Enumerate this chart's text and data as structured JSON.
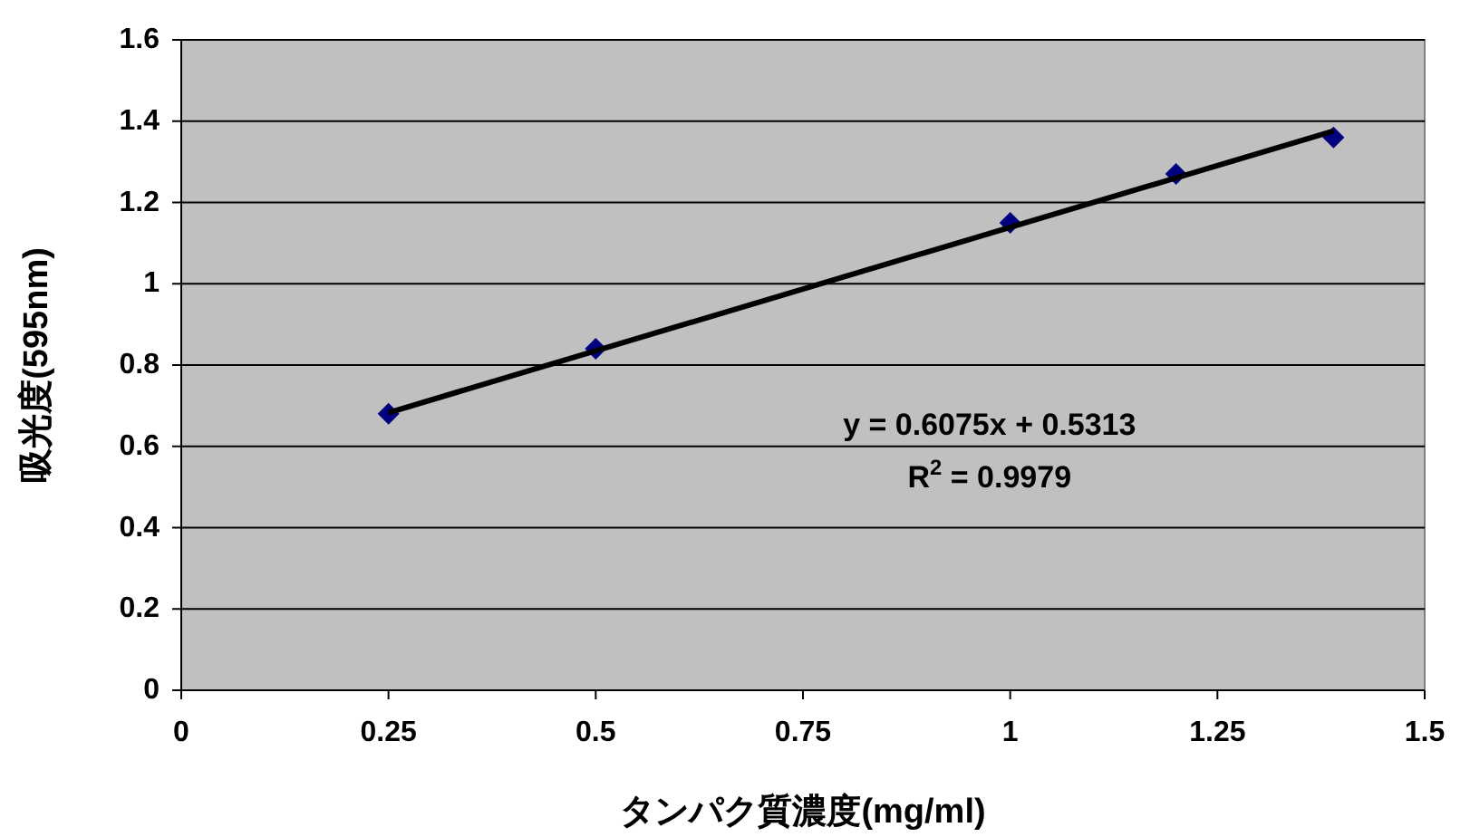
{
  "chart_data": {
    "type": "scatter",
    "xlabel": "タンパク質濃度(mg/ml)",
    "ylabel": "吸光度(595nm)",
    "xlim": [
      0,
      1.5
    ],
    "xticks": [
      0,
      0.25,
      0.5,
      0.75,
      1,
      1.25,
      1.5
    ],
    "ylim": [
      0,
      1.6
    ],
    "yticks": [
      0,
      0.2,
      0.4,
      0.6,
      0.8,
      1,
      1.2,
      1.4,
      1.6
    ],
    "grid": "y",
    "series": [
      {
        "color": "#000080",
        "marker": "diamond",
        "x": [
          0.25,
          0.5,
          1,
          1.2,
          1.39
        ],
        "values": [
          0.68,
          0.84,
          1.15,
          1.27,
          1.36
        ]
      },
      {
        "type": "line",
        "color": "#000000",
        "marker": "none",
        "line_style": "solid",
        "x": [
          0.25,
          1.39
        ],
        "values": [
          0.683,
          1.376
        ]
      }
    ],
    "annotations": [
      "y = 0.6075x + 0.5313",
      "R$^{2}$ = 0.9979"
    ]
  }
}
